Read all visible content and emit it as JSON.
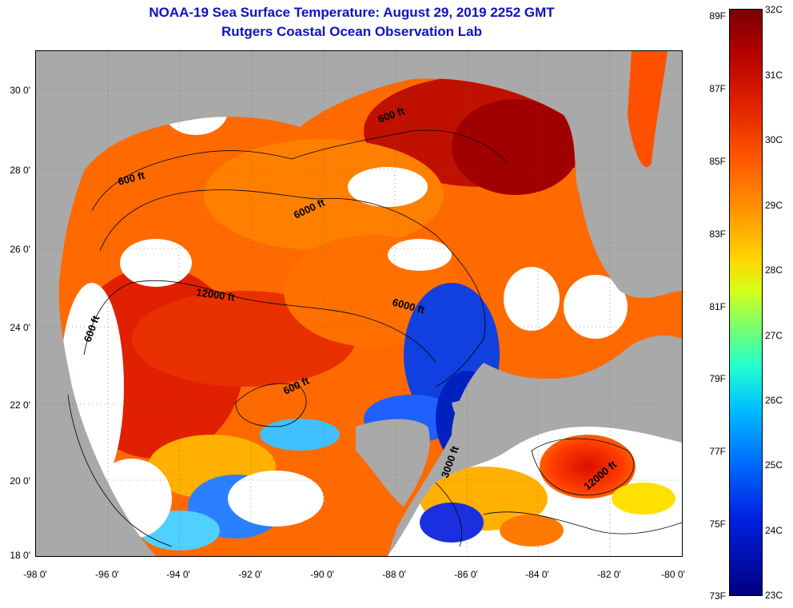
{
  "header": {
    "title_line1": "NOAA-19 Sea Surface Temperature:  August 29, 2019 2252 GMT",
    "title_line2": "Rutgers Coastal Ocean Observation Lab"
  },
  "axes": {
    "lat_labels": [
      "30 0'",
      "28 0'",
      "26 0'",
      "24 0'",
      "22 0'",
      "20 0'",
      "18 0'"
    ],
    "lon_labels": [
      "-98 0'",
      "-96 0'",
      "-94 0'",
      "-92 0'",
      "-90 0'",
      "-88 0'",
      "-86 0'",
      "-84 0'",
      "-82 0'",
      "-80 0'"
    ]
  },
  "contours": {
    "labels": [
      "600 ft",
      "600 ft",
      "6000 ft",
      "12000 ft",
      "600 ft",
      "6000 ft",
      "600 ft",
      "3000 ft",
      "12000 ft"
    ]
  },
  "colorbar": {
    "fahrenheit": [
      "89F",
      "87F",
      "85F",
      "83F",
      "81F",
      "79F",
      "77F",
      "75F",
      "73F"
    ],
    "celsius": [
      "32C",
      "31C",
      "30C",
      "29C",
      "28C",
      "27C",
      "26C",
      "25C",
      "24C",
      "23C"
    ]
  },
  "colors": {
    "land": "#a9a9a9",
    "cloud": "#ffffff",
    "title": "#1010c8"
  }
}
